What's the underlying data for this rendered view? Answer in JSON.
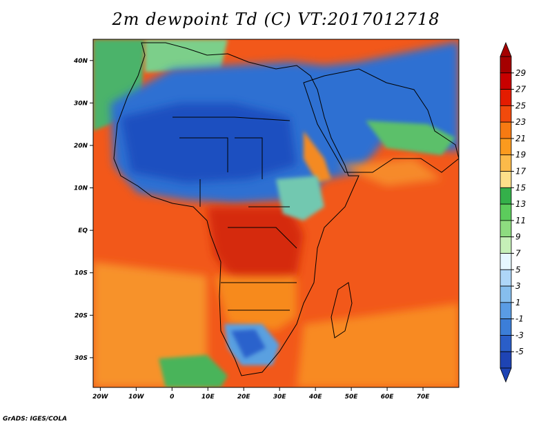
{
  "title": "2m dewpoint Td (C) VT:2017012718",
  "footer": "GrADS: IGES/COLA",
  "map": {
    "lon_range": [
      -22,
      80
    ],
    "lat_range": [
      -37,
      45
    ],
    "x_ticks": [
      {
        "lon": -20,
        "label": "20W"
      },
      {
        "lon": -10,
        "label": "10W"
      },
      {
        "lon": 0,
        "label": "0"
      },
      {
        "lon": 10,
        "label": "10E"
      },
      {
        "lon": 20,
        "label": "20E"
      },
      {
        "lon": 30,
        "label": "30E"
      },
      {
        "lon": 40,
        "label": "40E"
      },
      {
        "lon": 50,
        "label": "50E"
      },
      {
        "lon": 60,
        "label": "60E"
      },
      {
        "lon": 70,
        "label": "70E"
      }
    ],
    "y_ticks": [
      {
        "lat": 40,
        "label": "40N"
      },
      {
        "lat": 30,
        "label": "30N"
      },
      {
        "lat": 20,
        "label": "20N"
      },
      {
        "lat": 10,
        "label": "10N"
      },
      {
        "lat": 0,
        "label": "EQ"
      },
      {
        "lat": -10,
        "label": "10S"
      },
      {
        "lat": -20,
        "label": "20S"
      },
      {
        "lat": -30,
        "label": "30S"
      }
    ]
  },
  "colorbar": {
    "labels": [
      "29",
      "27",
      "25",
      "23",
      "21",
      "19",
      "17",
      "15",
      "13",
      "11",
      "9",
      "7",
      "5",
      "3",
      "1",
      "-1",
      "-3",
      "-5"
    ],
    "colors": [
      "#a50000",
      "#c80000",
      "#e41c00",
      "#f24a0c",
      "#f77a12",
      "#fb9a1e",
      "#fcba4a",
      "#fde08a",
      "#34b04a",
      "#5ccc5c",
      "#8edc80",
      "#c6f0b8",
      "#e6f8ff",
      "#aed6f8",
      "#86beee",
      "#5a9ce4",
      "#3c7ed8",
      "#2a5ec8",
      "#1e44b4"
    ]
  }
}
